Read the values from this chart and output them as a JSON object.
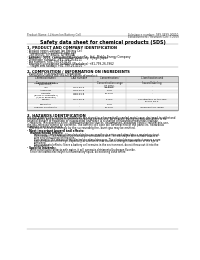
{
  "bg_color": "#ffffff",
  "header_left": "Product Name: Lithium Ion Battery Cell",
  "header_right_line1": "Substance number: 989-0499-00010",
  "header_right_line2": "Establishment / Revision: Dec.7.2009",
  "title": "Safety data sheet for chemical products (SDS)",
  "section1_title": "1. PRODUCT AND COMPANY IDENTIFICATION",
  "section1_lines": [
    "· Product name: Lithium Ion Battery Cell",
    "· Product code: Cylindrical-type cell",
    "    SIF-B650U, SIF-B650L, SIF-B650A",
    "· Company name:   Sony Energy Devices Co., Ltd., Mobile Energy Company",
    "· Address:   2221  Kannondori, Koriyama-City, Hyogo, Japan",
    "· Telephone number:  +81-799-26-4111",
    "· Fax number: +81-799-26-4120",
    "· Emergency telephone number (Weekdays) +81-799-26-3962",
    "    (Night and holiday) +81-799-26-4101"
  ],
  "section2_title": "2. COMPOSITION / INFORMATION ON INGREDIENTS",
  "section2_sub": "· Substance or preparation: Preparation",
  "section2_sub2": "· Information about the chemical nature of product:",
  "col_headers": [
    "Chemical name /\nCommon name",
    "CAS number",
    "Concentration /\nConcentration range\n(30-60%)",
    "Classification and\nhazard labeling"
  ],
  "table_rows": [
    [
      "Lithium cobalt oxide\n(LiMnCoO₄)",
      "-",
      "-",
      "-"
    ],
    [
      "Iron",
      "7439-89-6",
      "10-25%",
      "-"
    ],
    [
      "Aluminum",
      "7429-90-5",
      "2-6%",
      "-"
    ],
    [
      "Graphite\n(Black or graphite-I)\n(A/B or graphite)",
      "7782-42-5\n7782-44-0",
      "10-25%",
      "-"
    ],
    [
      "Copper",
      "7440-50-8",
      "5-10%",
      "Sensitization of the skin\ngroup No.2"
    ],
    [
      "Separator",
      "-",
      "1-5%",
      "-"
    ],
    [
      "Organic electrolyte",
      "-",
      "10-25%",
      "Inflammatory liquid"
    ]
  ],
  "section3_title": "3. HAZARDS IDENTIFICATION",
  "section3_para": [
    "For this battery cell, chemical substances are stored in a hermetically sealed metal case, designed to withstand",
    "temperatures and pressure-environments during normal use. As a result, during normal use, there is no",
    "physical danger of explosion or evaporation and there is a change of hazardous materials leakage.",
    "   However, if exposed to a fire, added mechanical shocks, decomposed, abnormal electric refusal mis-use,",
    "the gas releases cannot be operated. The battery cell case will be breached of the particles, hazardous",
    "materials may be released.",
    "   Moreover, if heated strongly by the surrounding fire, burst gas may be emitted."
  ],
  "section3_bullet1": "· Most important hazard and effects:",
  "section3_human": "Human health effects:",
  "section3_inhalation": "Inhalation: The release of the electrolyte has an anesthesia action and stimulates a respiratory tract.",
  "section3_skin1": "Skin contact: The release of the electrolyte stimulates a skin. The electrolyte skin contact causes a",
  "section3_skin2": "sore and stimulation on the skin.",
  "section3_eye1": "Eye contact: The release of the electrolyte stimulates eyes. The electrolyte eye contact causes a sore",
  "section3_eye2": "and stimulation on the eye. Especially, a substance that causes a strong inflammation of the eye is",
  "section3_eye3": "contained.",
  "section3_env1": "Environmental effects: Since a battery cell remains in the environment, do not throw out it into the",
  "section3_env2": "environment.",
  "section3_bullet2": "· Specific hazards:",
  "section3_spec1": "If the electrolyte contacts with water, it will generate detrimental hydrogen fluoride.",
  "section3_spec2": "Since the leaked electrolyte is inflammatory liquid, do not bring close to fire."
}
